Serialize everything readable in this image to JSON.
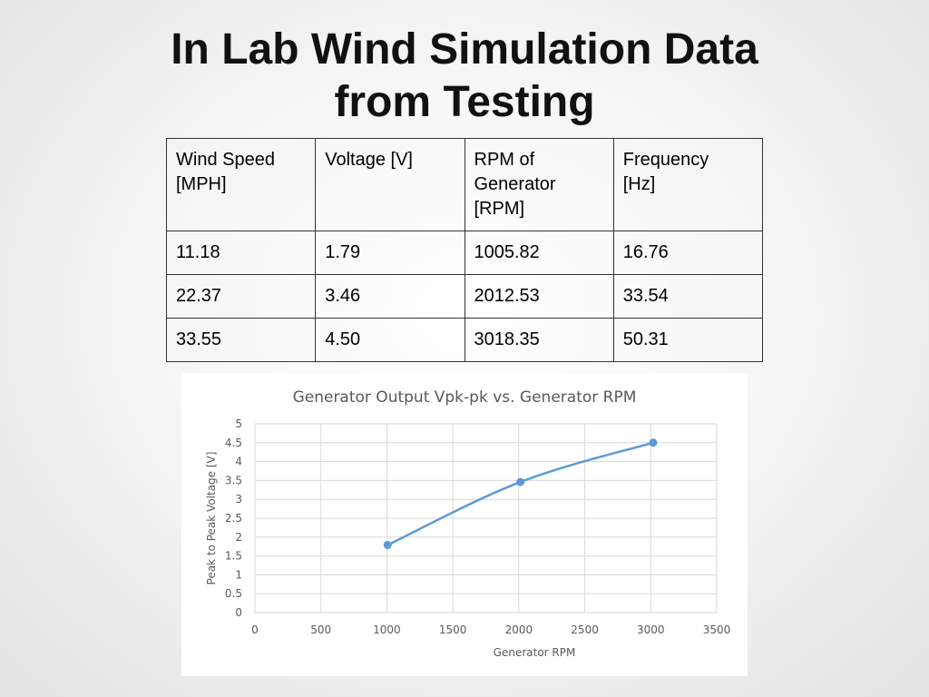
{
  "slide": {
    "title_line1": "In Lab Wind Simulation Data",
    "title_line2": "from Testing"
  },
  "table": {
    "headers": [
      [
        "Wind Speed",
        "[MPH]"
      ],
      [
        "Voltage [V]"
      ],
      [
        "RPM of",
        "Generator",
        "[RPM]"
      ],
      [
        "Frequency",
        "[Hz]"
      ]
    ],
    "rows": [
      [
        "11.18",
        "1.79",
        "1005.82",
        "16.76"
      ],
      [
        "22.37",
        "3.46",
        "2012.53",
        "33.54"
      ],
      [
        "33.55",
        "4.50",
        "3018.35",
        "50.31"
      ]
    ]
  },
  "chart_data": {
    "type": "line",
    "title": "Generator Output Vpk-pk vs. Generator RPM",
    "xlabel": "Generator RPM",
    "ylabel": "Peak to Peak Voltage [V]",
    "xlim": [
      0,
      3500
    ],
    "ylim": [
      0,
      5
    ],
    "xticks": [
      "0",
      "500",
      "1000",
      "1500",
      "2000",
      "2500",
      "3000",
      "3500"
    ],
    "yticks": [
      "0",
      "0.5",
      "1",
      "1.5",
      "2",
      "2.5",
      "3",
      "3.5",
      "4",
      "4.5",
      "5"
    ],
    "grid": true,
    "legend": "none",
    "line_color": "#5b9bd5",
    "grid_color": "#d9d9d9",
    "series": [
      {
        "x": [
          1005.82,
          2012.53,
          3018.35
        ],
        "values": [
          1.79,
          3.46,
          4.5
        ]
      }
    ]
  }
}
